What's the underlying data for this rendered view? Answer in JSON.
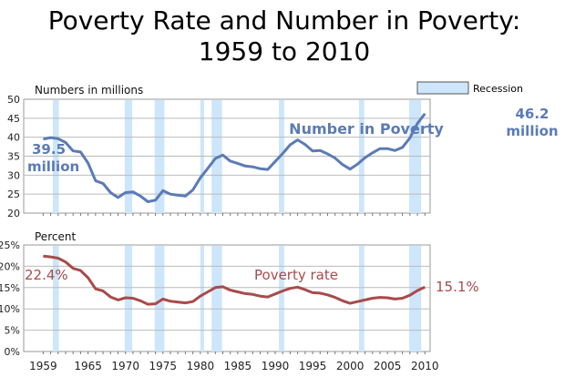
{
  "chart_data": [
    {
      "type": "line",
      "title_lines": [
        "Poverty Rate and Number in Poverty:",
        "1959 to 2010"
      ],
      "ylabel": "Numbers in millions",
      "ylim": [
        20,
        50
      ],
      "yticks": [
        20,
        25,
        30,
        35,
        40,
        45,
        50
      ],
      "ytick_labels": [
        "20",
        "25",
        "30",
        "35",
        "40",
        "45",
        "50"
      ],
      "series": [
        {
          "name": "Number in Poverty",
          "color": "#5b7bb6",
          "x": [
            1959,
            1960,
            1961,
            1962,
            1963,
            1964,
            1965,
            1966,
            1967,
            1968,
            1969,
            1970,
            1971,
            1972,
            1973,
            1974,
            1975,
            1976,
            1977,
            1978,
            1979,
            1980,
            1981,
            1982,
            1983,
            1984,
            1985,
            1986,
            1987,
            1988,
            1989,
            1990,
            1991,
            1992,
            1993,
            1994,
            1995,
            1996,
            1997,
            1998,
            1999,
            2000,
            2001,
            2002,
            2003,
            2004,
            2005,
            2006,
            2007,
            2008,
            2009,
            2010
          ],
          "values": [
            39.5,
            39.9,
            39.6,
            38.6,
            36.4,
            36.1,
            33.2,
            28.5,
            27.8,
            25.4,
            24.1,
            25.4,
            25.6,
            24.5,
            23.0,
            23.4,
            25.9,
            25.0,
            24.7,
            24.5,
            26.1,
            29.3,
            31.8,
            34.4,
            35.3,
            33.7,
            33.1,
            32.4,
            32.2,
            31.7,
            31.5,
            33.6,
            35.7,
            38.0,
            39.3,
            38.1,
            36.4,
            36.5,
            35.6,
            34.5,
            32.8,
            31.6,
            32.9,
            34.6,
            35.9,
            37.0,
            37.0,
            36.5,
            37.3,
            39.8,
            43.6,
            46.2
          ]
        }
      ],
      "annotations": {
        "series_label": "Number in Poverty",
        "start_value": "39.5",
        "start_unit": "million",
        "end_value": "46.2",
        "end_unit": "million"
      }
    },
    {
      "type": "line",
      "ylabel": "Percent",
      "ylim": [
        0,
        25
      ],
      "yticks": [
        0,
        5,
        10,
        15,
        20,
        25
      ],
      "ytick_labels": [
        "0%",
        "5%",
        "10%",
        "15%",
        "20%",
        "25%"
      ],
      "xlabel": "",
      "xticks": [
        1959,
        1965,
        1970,
        1975,
        1980,
        1985,
        1990,
        1995,
        2000,
        2005,
        2010
      ],
      "xtick_labels": [
        "1959",
        "1965",
        "1970",
        "1975",
        "1980",
        "1985",
        "1990",
        "1995",
        "2000",
        "2005",
        "2010"
      ],
      "series": [
        {
          "name": "Poverty rate",
          "color": "#a84b4b",
          "x": [
            1959,
            1960,
            1961,
            1962,
            1963,
            1964,
            1965,
            1966,
            1967,
            1968,
            1969,
            1970,
            1971,
            1972,
            1973,
            1974,
            1975,
            1976,
            1977,
            1978,
            1979,
            1980,
            1981,
            1982,
            1983,
            1984,
            1985,
            1986,
            1987,
            1988,
            1989,
            1990,
            1991,
            1992,
            1993,
            1994,
            1995,
            1996,
            1997,
            1998,
            1999,
            2000,
            2001,
            2002,
            2003,
            2004,
            2005,
            2006,
            2007,
            2008,
            2009,
            2010
          ],
          "values": [
            22.4,
            22.2,
            21.9,
            21.0,
            19.5,
            19.0,
            17.3,
            14.7,
            14.2,
            12.8,
            12.1,
            12.6,
            12.5,
            11.9,
            11.1,
            11.2,
            12.3,
            11.8,
            11.6,
            11.4,
            11.7,
            13.0,
            14.0,
            15.0,
            15.2,
            14.4,
            14.0,
            13.6,
            13.4,
            13.0,
            12.8,
            13.5,
            14.2,
            14.8,
            15.1,
            14.5,
            13.8,
            13.7,
            13.3,
            12.7,
            11.9,
            11.3,
            11.7,
            12.1,
            12.5,
            12.7,
            12.6,
            12.3,
            12.5,
            13.2,
            14.3,
            15.1
          ]
        }
      ],
      "annotations": {
        "series_label": "Poverty rate",
        "start_value": "22.4%",
        "end_value": "15.1%"
      }
    }
  ],
  "legend": {
    "label": "Recession",
    "color": "#cde6fb",
    "placement": "top-right"
  },
  "recessions": [
    [
      1960.3,
      1961.1
    ],
    [
      1969.9,
      1970.9
    ],
    [
      1973.9,
      1975.2
    ],
    [
      1980.0,
      1980.5
    ],
    [
      1981.5,
      1982.9
    ],
    [
      1990.5,
      1991.2
    ],
    [
      2001.2,
      2001.9
    ],
    [
      2007.9,
      2009.5
    ]
  ],
  "xlim": [
    1958,
    2010.8
  ]
}
